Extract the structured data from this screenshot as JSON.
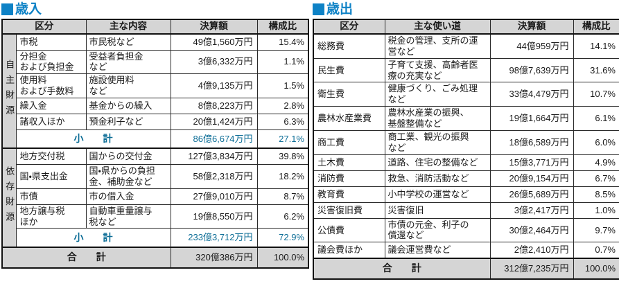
{
  "colors": {
    "title_blue": "#0e82c6",
    "subtotal_blue": "#0c6d96",
    "header_bg": "#d5d5d5"
  },
  "revenue_table": {
    "title": "歳入",
    "headers": {
      "category": "区分",
      "description": "主な内容",
      "amount": "決算額",
      "ratio": "構成比"
    },
    "groups": [
      {
        "group_label": "自主財源",
        "rows": [
          {
            "category": "市税",
            "description": "市民税など",
            "amount": "49億1,560万円",
            "ratio": "15.4%"
          },
          {
            "category": "分担金\nおよび負担金",
            "description": "受益者負担金\nなど",
            "amount": "3億6,332万円",
            "ratio": "1.1%"
          },
          {
            "category": "使用料\nおよび手数料",
            "description": "施設使用料\nなど",
            "amount": "4億9,135万円",
            "ratio": "1.5%"
          },
          {
            "category": "繰入金",
            "description": "基金からの繰入",
            "amount": "8億8,223万円",
            "ratio": "2.8%"
          },
          {
            "category": "諸収入ほか",
            "description": "預金利子など",
            "amount": "20億1,424万円",
            "ratio": "6.3%"
          }
        ],
        "subtotal": {
          "label": "小　　計",
          "amount": "86億6,674万円",
          "ratio": "27.1%"
        }
      },
      {
        "group_label": "依存財源",
        "rows": [
          {
            "category": "地方交付税",
            "description": "国からの交付金",
            "amount": "127億3,834万円",
            "ratio": "39.8%"
          },
          {
            "category": "国・県支出金",
            "description": "国・県からの負担\n金、補助金など",
            "amount": "58億2,318万円",
            "ratio": "18.2%"
          },
          {
            "category": "市債",
            "description": "市の借入金",
            "amount": "27億9,010万円",
            "ratio": "8.7%"
          },
          {
            "category": "地方譲与税\nほか",
            "description": "自動車重量譲与\n税など",
            "amount": "19億8,550万円",
            "ratio": "6.2%"
          }
        ],
        "subtotal": {
          "label": "小　　計",
          "amount": "233億3,712万円",
          "ratio": "72.9%"
        }
      }
    ],
    "total": {
      "label": "合　　計",
      "amount": "320億386万円",
      "ratio": "100.0%"
    }
  },
  "expenditure_table": {
    "title": "歳出",
    "headers": {
      "category": "区分",
      "description": "主な使い道",
      "amount": "決算額",
      "ratio": "構成比"
    },
    "rows": [
      {
        "category": "総務費",
        "description": "税金の管理、支所の運\n営など",
        "amount": "44億959万円",
        "ratio": "14.1%"
      },
      {
        "category": "民生費",
        "description": "子育て支援、高齢者医\n療の充実など",
        "amount": "98億7,639万円",
        "ratio": "31.6%"
      },
      {
        "category": "衛生費",
        "description": "健康づくり、ごみ処理\nなど",
        "amount": "33億4,479万円",
        "ratio": "10.7%"
      },
      {
        "category": "農林水産業費",
        "description": "農林水産業の振興、\n基盤整備など",
        "amount": "19億1,664万円",
        "ratio": "6.1%"
      },
      {
        "category": "商工費",
        "description": "商工業、観光の振興\nなど",
        "amount": "18億6,589万円",
        "ratio": "6.0%"
      },
      {
        "category": "土木費",
        "description": "道路、住宅の整備など",
        "amount": "15億3,771万円",
        "ratio": "4.9%"
      },
      {
        "category": "消防費",
        "description": "救急、消防活動など",
        "amount": "20億9,154万円",
        "ratio": "6.7%"
      },
      {
        "category": "教育費",
        "description": "小中学校の運営など",
        "amount": "26億5,689万円",
        "ratio": "8.5%"
      },
      {
        "category": "災害復旧費",
        "description": "災害復旧",
        "amount": "3億2,417万円",
        "ratio": "1.0%"
      },
      {
        "category": "公債費",
        "description": "市債の元金、利子の\n償還など",
        "amount": "30億2,464万円",
        "ratio": "9.7%"
      },
      {
        "category": "議会費ほか",
        "description": "議会運営費など",
        "amount": "2億2,410万円",
        "ratio": "0.7%"
      }
    ],
    "total": {
      "label": "合　　計",
      "amount": "312億7,235万円",
      "ratio": "100.0%"
    }
  }
}
